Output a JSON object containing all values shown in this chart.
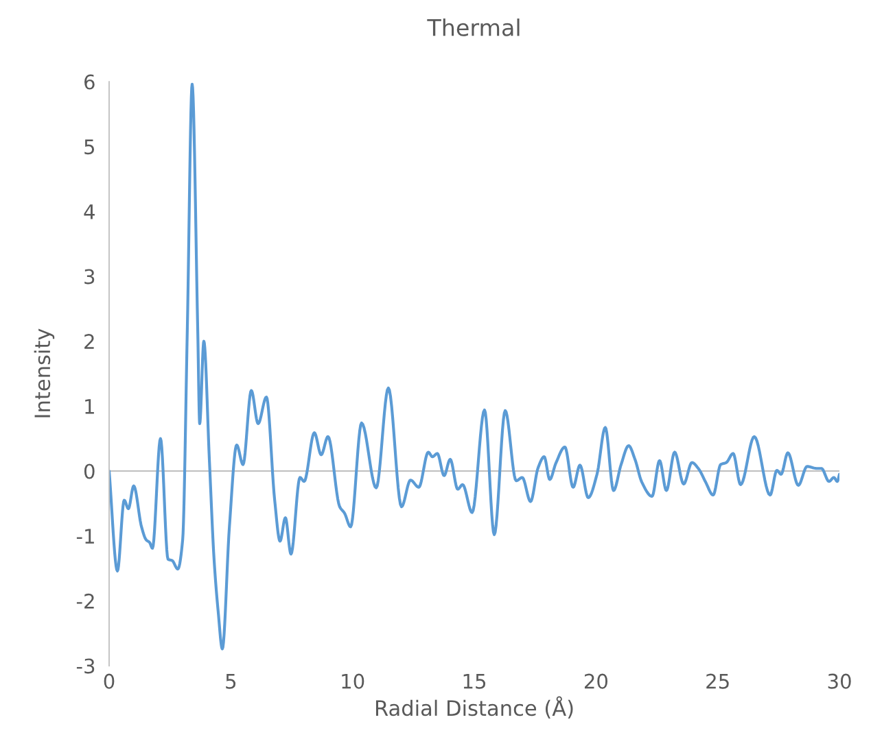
{
  "chart_data": {
    "type": "line",
    "title": "Thermal",
    "xlabel": "Radial Distance (Å)",
    "ylabel": "Intensity",
    "xlim": [
      0,
      30
    ],
    "xticks": [
      0,
      5,
      10,
      15,
      20,
      25,
      30
    ],
    "ylim": [
      -3,
      6
    ],
    "yticks": [
      -3,
      -2,
      -1,
      0,
      1,
      2,
      3,
      4,
      5,
      6
    ],
    "grid": false,
    "ref_lines": [
      {
        "axis": "y",
        "value": 0,
        "color": "#bfbfbf"
      }
    ],
    "legend": false,
    "marker": "none",
    "line_style": "solid",
    "series": [
      {
        "color": "#5b9bd5",
        "x": [
          0,
          0.34,
          0.62,
          0.79,
          1.01,
          1.33,
          1.52,
          1.66,
          1.78,
          2.11,
          2.42,
          2.59,
          2.82,
          3.02,
          3.21,
          3.41,
          3.64,
          3.72,
          3.89,
          4.12,
          4.31,
          4.48,
          4.65,
          4.94,
          5.24,
          5.5,
          5.84,
          6.12,
          6.46,
          6.8,
          7.02,
          7.24,
          7.47,
          7.84,
          8.01,
          8.43,
          8.71,
          8.99,
          9.47,
          9.67,
          9.92,
          10.37,
          10.97,
          11.47,
          12.01,
          12.38,
          12.72,
          13.11,
          13.28,
          13.48,
          13.76,
          14.01,
          14.32,
          14.52,
          14.91,
          15.42,
          15.82,
          16.27,
          16.72,
          16.97,
          17.31,
          17.62,
          17.87,
          18.1,
          18.35,
          18.72,
          19.06,
          19.34,
          19.68,
          20.04,
          20.38,
          20.72,
          21.03,
          21.34,
          21.6,
          21.88,
          22.3,
          22.61,
          22.89,
          23.23,
          23.6,
          23.94,
          24.22,
          24.5,
          24.81,
          25.12,
          25.35,
          25.63,
          25.94,
          26.5,
          27.15,
          27.43,
          27.6,
          27.88,
          28.31,
          28.67,
          29.07,
          29.26,
          29.57,
          29.77,
          29.91,
          30
        ],
        "values": [
          0,
          -1.54,
          -0.45,
          -0.58,
          -0.23,
          -0.86,
          -1.06,
          -1.1,
          -1.19,
          0.5,
          -1.36,
          -1.38,
          -1.51,
          -1.06,
          2.16,
          5.96,
          2.16,
          0.73,
          2.0,
          0.15,
          -1.36,
          -2.17,
          -2.74,
          -0.86,
          0.4,
          0.1,
          1.24,
          0.73,
          1.14,
          -0.45,
          -1.08,
          -0.72,
          -1.28,
          -0.1,
          -0.16,
          0.59,
          0.25,
          0.53,
          -0.55,
          -0.65,
          -0.86,
          0.74,
          -0.26,
          1.28,
          -0.55,
          -0.14,
          -0.25,
          0.29,
          0.22,
          0.27,
          -0.07,
          0.18,
          -0.28,
          -0.21,
          -0.64,
          0.94,
          -0.98,
          0.93,
          -0.15,
          -0.1,
          -0.47,
          0.05,
          0.22,
          -0.13,
          0.12,
          0.37,
          -0.25,
          0.09,
          -0.41,
          -0.05,
          0.67,
          -0.3,
          0.1,
          0.39,
          0.18,
          -0.17,
          -0.39,
          0.16,
          -0.3,
          0.29,
          -0.2,
          0.13,
          0.03,
          -0.17,
          -0.37,
          0.1,
          0.13,
          0.27,
          -0.21,
          0.53,
          -0.37,
          0.01,
          -0.05,
          0.28,
          -0.22,
          0.07,
          0.04,
          0.04,
          -0.16,
          -0.1,
          -0.16,
          -0.05
        ]
      }
    ]
  }
}
